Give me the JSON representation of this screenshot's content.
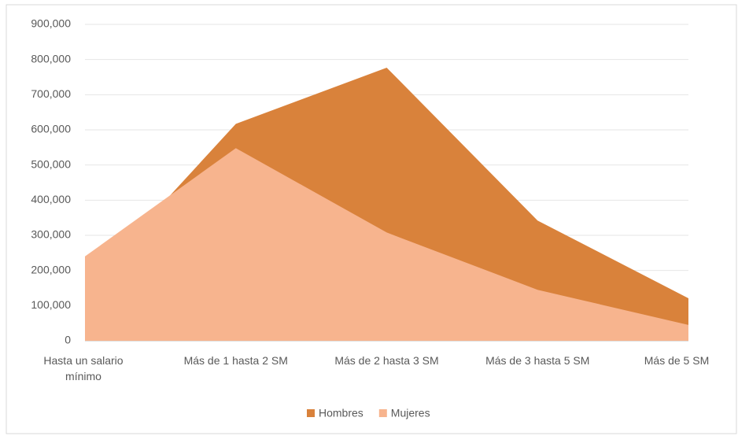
{
  "chart_data": {
    "type": "area",
    "categories": [
      "Hasta un salario mínimo",
      "Más de 1 hasta 2 SM",
      "Más de 2 hasta 3 SM",
      "Más de 3 hasta 5 SM",
      "Más de 5 SM"
    ],
    "series": [
      {
        "name": "Hombres",
        "color": "#d9823b",
        "values": [
          150000,
          617000,
          777000,
          342000,
          121000
        ]
      },
      {
        "name": "Mujeres",
        "color": "#f7b48e",
        "values": [
          240000,
          548000,
          308000,
          145000,
          45000
        ]
      }
    ],
    "ylim": [
      0,
      900000
    ],
    "yticks": [
      {
        "value": 0,
        "label": "0"
      },
      {
        "value": 100000,
        "label": "100,000"
      },
      {
        "value": 200000,
        "label": "200,000"
      },
      {
        "value": 300000,
        "label": "300,000"
      },
      {
        "value": 400000,
        "label": "400,000"
      },
      {
        "value": 500000,
        "label": "500,000"
      },
      {
        "value": 600000,
        "label": "600,000"
      },
      {
        "value": 700000,
        "label": "700,000"
      },
      {
        "value": 800000,
        "label": "800,000"
      },
      {
        "value": 900000,
        "label": "900,000"
      }
    ],
    "grid": true,
    "legend": "bottom"
  }
}
